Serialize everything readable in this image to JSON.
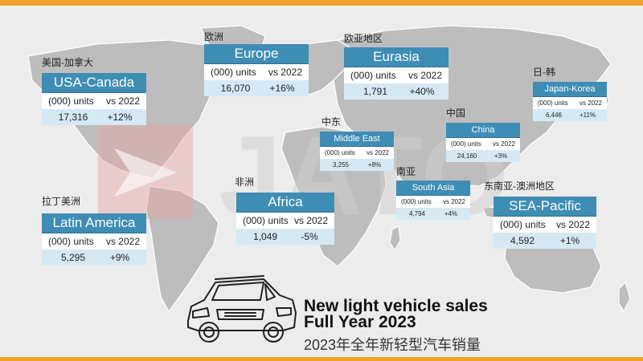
{
  "title": {
    "line1": "New light vehicle sales",
    "line2": "Full Year 2023",
    "cn": "2023年全年新轻型汽车销量"
  },
  "logo_text": "JATO",
  "colors": {
    "accent": "#f0a32a",
    "header": "#3e8db4",
    "value_row": "#d5e9f5",
    "map": "#bdbdbd"
  },
  "icons": [
    "car-icon",
    "jato-logo"
  ],
  "chart_data": {
    "type": "table",
    "title": "New light vehicle sales Full Year 2023",
    "columns": [
      "(000) units",
      "vs 2022"
    ],
    "regions": [
      {
        "region_cn": "美国-加拿大",
        "name": "USA-Canada",
        "units_label": "(000) units",
        "vs_label": "vs 2022",
        "units": "17,316",
        "change": "+12%"
      },
      {
        "region_cn": "欧洲",
        "name": "Europe",
        "units_label": "(000) units",
        "vs_label": "vs 2022",
        "units": "16,070",
        "change": "+16%"
      },
      {
        "region_cn": "欧亚地区",
        "name": "Eurasia",
        "units_label": "(000) units",
        "vs_label": "vs 2022",
        "units": "1,791",
        "change": "+40%"
      },
      {
        "region_cn": "日-韩",
        "name": "Japan-Korea",
        "units_label": "(000) units",
        "vs_label": "vs 2022",
        "units": "6,446",
        "change": "+11%"
      },
      {
        "region_cn": "中东",
        "name": "Middle East",
        "units_label": "(000) units",
        "vs_label": "vs 2022",
        "units": "3,255",
        "change": "+8%"
      },
      {
        "region_cn": "中国",
        "name": "China",
        "units_label": "(000) units",
        "vs_label": "vs 2022",
        "units": "24,160",
        "change": "+3%"
      },
      {
        "region_cn": "非洲",
        "name": "Africa",
        "units_label": "(000) units",
        "vs_label": "vs 2022",
        "units": "1,049",
        "change": "-5%"
      },
      {
        "region_cn": "南亚",
        "name": "South Asia",
        "units_label": "(000) units",
        "vs_label": "vs 2022",
        "units": "4,794",
        "change": "+4%"
      },
      {
        "region_cn": "拉丁美洲",
        "name": "Latin America",
        "units_label": "(000) units",
        "vs_label": "vs 2022",
        "units": "5,295",
        "change": "+9%"
      },
      {
        "region_cn": "东南亚-澳洲地区",
        "name": "SEA-Pacific",
        "units_label": "(000) units",
        "vs_label": "vs 2022",
        "units": "4,592",
        "change": "+1%"
      }
    ]
  }
}
